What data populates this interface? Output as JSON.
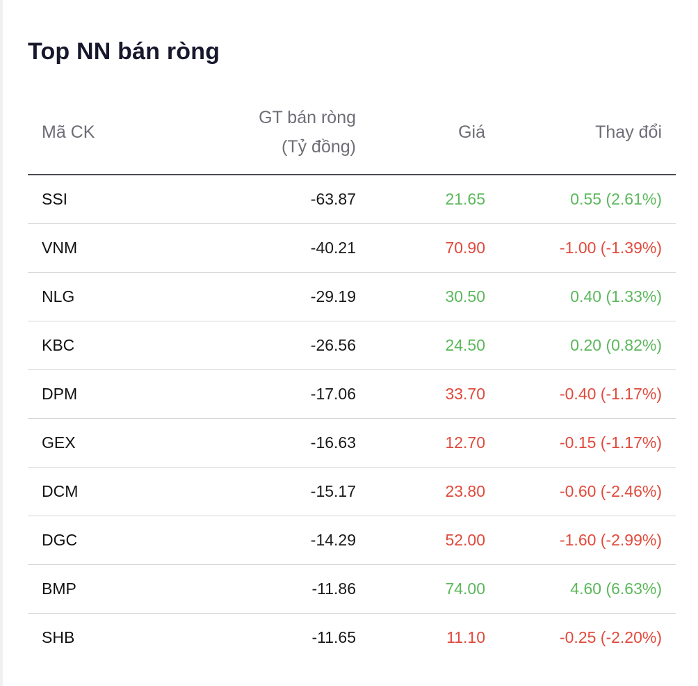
{
  "title": "Top NN bán ròng",
  "columns": {
    "symbol": "Mã CK",
    "net_value_line1": "GT bán ròng",
    "net_value_line2": "(Tỷ đồng)",
    "price": "Giá",
    "change": "Thay đổi"
  },
  "colors": {
    "up": "#5cb85c",
    "down": "#e04a3c"
  },
  "rows": [
    {
      "symbol": "SSI",
      "net_value": "-63.87",
      "price": "21.65",
      "change": "0.55 (2.61%)",
      "direction": "up"
    },
    {
      "symbol": "VNM",
      "net_value": "-40.21",
      "price": "70.90",
      "change": "-1.00 (-1.39%)",
      "direction": "down"
    },
    {
      "symbol": "NLG",
      "net_value": "-29.19",
      "price": "30.50",
      "change": "0.40 (1.33%)",
      "direction": "up"
    },
    {
      "symbol": "KBC",
      "net_value": "-26.56",
      "price": "24.50",
      "change": "0.20 (0.82%)",
      "direction": "up"
    },
    {
      "symbol": "DPM",
      "net_value": "-17.06",
      "price": "33.70",
      "change": "-0.40 (-1.17%)",
      "direction": "down"
    },
    {
      "symbol": "GEX",
      "net_value": "-16.63",
      "price": "12.70",
      "change": "-0.15 (-1.17%)",
      "direction": "down"
    },
    {
      "symbol": "DCM",
      "net_value": "-15.17",
      "price": "23.80",
      "change": "-0.60 (-2.46%)",
      "direction": "down"
    },
    {
      "symbol": "DGC",
      "net_value": "-14.29",
      "price": "52.00",
      "change": "-1.60 (-2.99%)",
      "direction": "down"
    },
    {
      "symbol": "BMP",
      "net_value": "-11.86",
      "price": "74.00",
      "change": "4.60 (6.63%)",
      "direction": "up"
    },
    {
      "symbol": "SHB",
      "net_value": "-11.65",
      "price": "11.10",
      "change": "-0.25 (-2.20%)",
      "direction": "down"
    }
  ]
}
